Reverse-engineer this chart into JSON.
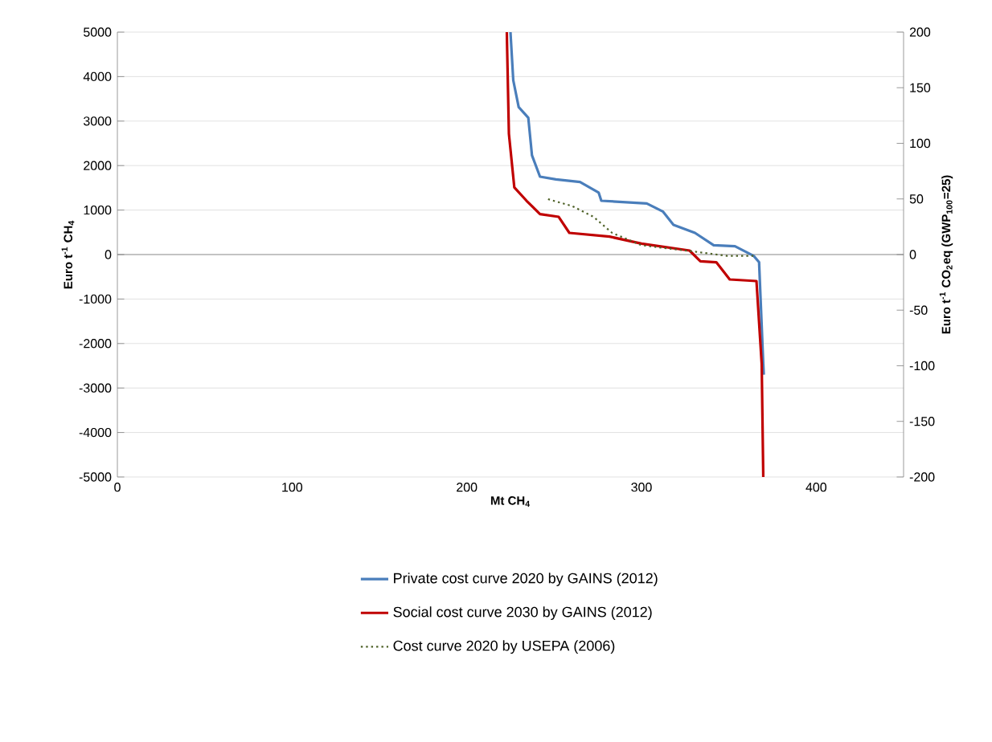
{
  "chart_data": {
    "type": "line",
    "xlabel": "Mt CH$_{4}$",
    "ylabel": "Euro t$^{-1}$ CH$_{4}$",
    "y2label": "Euro t$^{-1}$ CO$_{2}$eq (GWP$_{100}$=25)",
    "xlim": [
      0,
      450
    ],
    "xticks": [
      0,
      100,
      200,
      300,
      400
    ],
    "ylim": [
      -5000,
      5000
    ],
    "yticks": [
      -5000,
      -4000,
      -3000,
      -2000,
      -1000,
      0,
      1000,
      2000,
      3000,
      4000,
      5000
    ],
    "y2lim": [
      -200,
      200
    ],
    "y2ticks": [
      -200,
      -150,
      -100,
      -50,
      0,
      50,
      100,
      150,
      200
    ],
    "grid": "y",
    "legend": "bottom",
    "series": [
      {
        "name": "Private cost curve 2020 by GAINS (2012)",
        "color": "#4a7ebb",
        "line_style": "solid",
        "x": [
          225,
          226.6,
          229.7,
          235.2,
          237.3,
          241.9,
          251,
          264.8,
          275.5,
          277,
          303,
          312.2,
          318.3,
          330.6,
          341.3,
          353.5,
          364.2,
          367.3,
          369.7,
          370
        ],
        "values": [
          5000,
          3917,
          3314,
          3076,
          2231,
          1751,
          1690,
          1631,
          1390,
          1209,
          1148,
          968,
          668,
          487,
          210,
          188,
          -30,
          -173,
          -2462,
          -2700
        ]
      },
      {
        "name": "Social cost curve 2030 by GAINS (2012)",
        "color": "#c00000",
        "line_style": "solid",
        "x": [
          222.9,
          224.1,
          227.2,
          234.2,
          241.9,
          252.6,
          258.7,
          281.7,
          300,
          327.5,
          333.7,
          342.8,
          350.5,
          365.8,
          368.8,
          369.7
        ],
        "values": [
          5000,
          2715,
          1509,
          1209,
          909,
          848,
          487,
          403,
          246,
          90,
          -152,
          -173,
          -560,
          -596,
          -2462,
          -5000
        ]
      },
      {
        "name": "Cost curve 2020 by USEPA (2006)",
        "color": "#4f6228",
        "line_style": "dotted",
        "x": [
          246.5,
          260.3,
          272.5,
          283.2,
          300,
          330.6,
          348.9,
          364.2
        ],
        "values": [
          1245,
          1090,
          848,
          487,
          210,
          65,
          -30,
          -30
        ]
      }
    ]
  }
}
